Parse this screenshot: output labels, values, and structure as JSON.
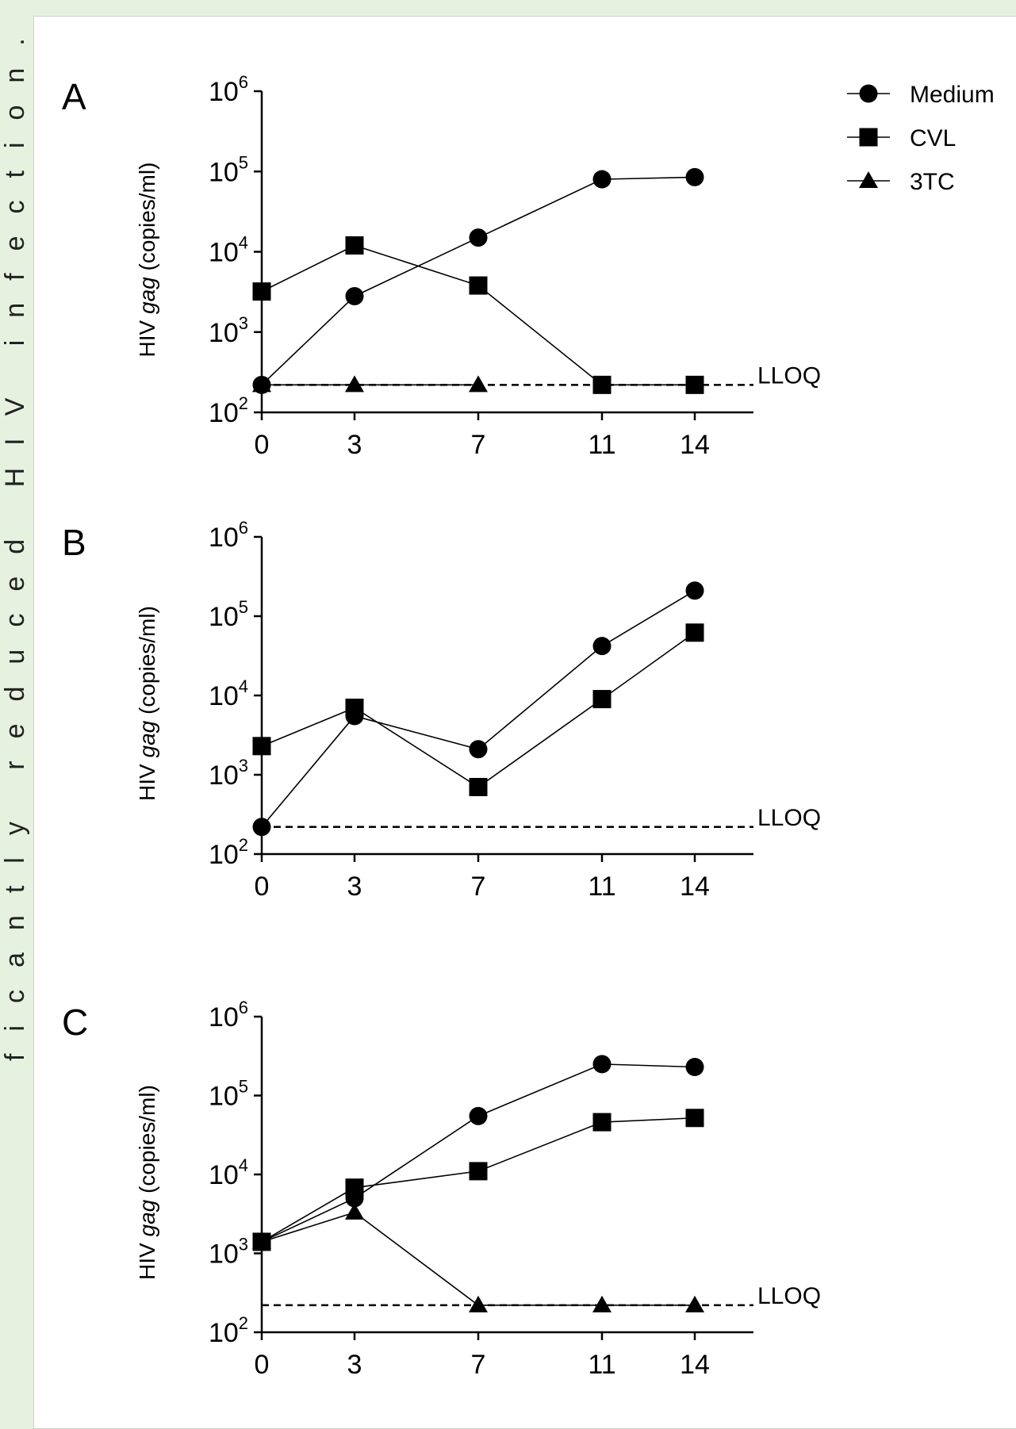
{
  "chart_data": [
    {
      "type": "line",
      "panel": "A",
      "x": [
        0,
        3,
        7,
        11,
        14
      ],
      "xticks": [
        "0",
        "3",
        "7",
        "11",
        "14"
      ],
      "xlim": [
        0,
        16
      ],
      "yscale": "log",
      "ylim": [
        100,
        1000000
      ],
      "ylabel": {
        "pre": "HIV ",
        "italic": "gag",
        "post": " (copies/ml)"
      },
      "reference_line": {
        "label": "LLOQ",
        "y": 220,
        "style": "dashed"
      },
      "series": [
        {
          "name": "Medium",
          "marker": "circle",
          "values": [
            220,
            2800,
            15000,
            80000,
            85000
          ]
        },
        {
          "name": "CVL",
          "marker": "square",
          "values": [
            3200,
            12000,
            3800,
            220,
            220
          ]
        },
        {
          "name": "3TC",
          "marker": "triangle",
          "values": [
            220,
            220,
            220,
            null,
            null
          ]
        }
      ],
      "legend": {
        "placement": "top-right"
      }
    },
    {
      "type": "line",
      "panel": "B",
      "x": [
        0,
        3,
        7,
        11,
        14
      ],
      "xticks": [
        "0",
        "3",
        "7",
        "11",
        "14"
      ],
      "xlim": [
        0,
        16
      ],
      "yscale": "log",
      "ylim": [
        100,
        1000000
      ],
      "ylabel": {
        "pre": "HIV ",
        "italic": "gag",
        "post": " (copies/ml)"
      },
      "reference_line": {
        "label": "LLOQ",
        "y": 220,
        "style": "dashed"
      },
      "series": [
        {
          "name": "Medium",
          "marker": "circle",
          "values": [
            220,
            5500,
            2100,
            42000,
            210000
          ]
        },
        {
          "name": "CVL",
          "marker": "square",
          "values": [
            2300,
            7000,
            700,
            9000,
            62000
          ]
        }
      ]
    },
    {
      "type": "line",
      "panel": "C",
      "x": [
        0,
        3,
        7,
        11,
        14
      ],
      "xticks": [
        "0",
        "3",
        "7",
        "11",
        "14"
      ],
      "xlim": [
        0,
        16
      ],
      "yscale": "log",
      "ylim": [
        100,
        1000000
      ],
      "ylabel": {
        "pre": "HIV ",
        "italic": "gag",
        "post": " (copies/ml)"
      },
      "reference_line": {
        "label": "LLOQ",
        "y": 220,
        "style": "dashed"
      },
      "series": [
        {
          "name": "Medium",
          "marker": "circle",
          "values": [
            1400,
            5000,
            55000,
            250000,
            230000
          ]
        },
        {
          "name": "CVL",
          "marker": "square",
          "values": [
            1400,
            6800,
            11000,
            46000,
            52000
          ]
        },
        {
          "name": "3TC",
          "marker": "triangle",
          "values": [
            1400,
            3300,
            220,
            220,
            220
          ]
        }
      ]
    }
  ],
  "legend": [
    {
      "name": "Medium",
      "marker": "circle"
    },
    {
      "name": "CVL",
      "marker": "square"
    },
    {
      "name": "3TC",
      "marker": "triangle"
    }
  ],
  "edge_text": "ficantly reduced HIV infection. Evalu",
  "colors": {
    "ink": "#000000",
    "background": "#e6f1e0",
    "panel": "#ffffff"
  }
}
